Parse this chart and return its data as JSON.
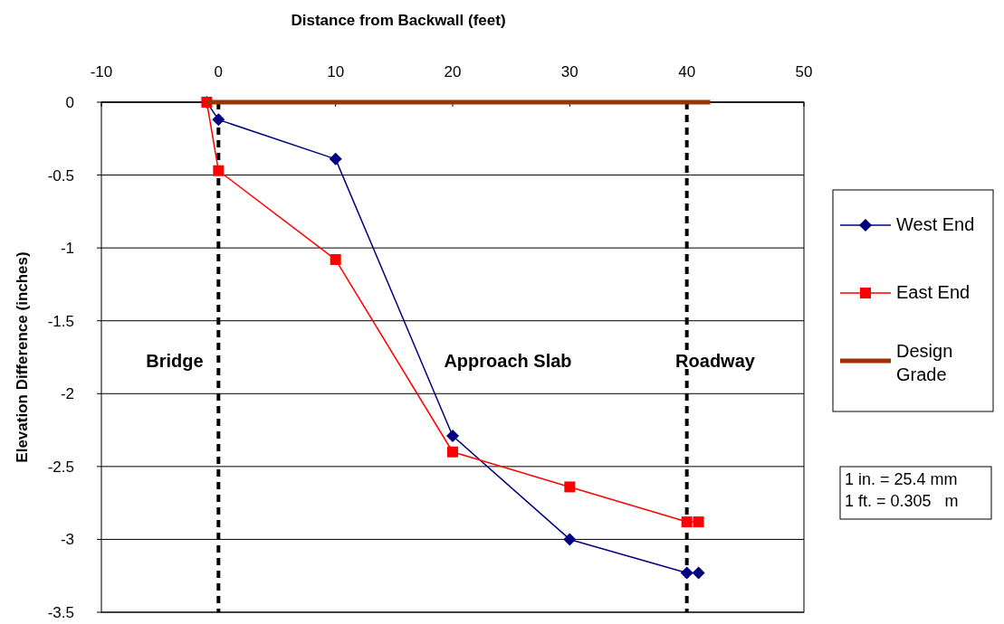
{
  "chart_data": {
    "type": "line",
    "xlabel": "Distance from Backwall (feet)",
    "ylabel": "Elevation Difference (inches)",
    "xlim": [
      -10,
      50
    ],
    "xticks": [
      -10,
      0,
      10,
      20,
      30,
      40,
      50
    ],
    "ylim": [
      -3.5,
      0
    ],
    "yticks": [
      0,
      -0.5,
      -1,
      -1.5,
      -2,
      -2.5,
      -3,
      -3.5
    ],
    "grid": "y",
    "legend": "right",
    "line_style": "solid",
    "series": [
      {
        "name": "West End",
        "color": "#000080",
        "marker": "diamond",
        "x": [
          -1,
          0,
          10,
          20,
          30,
          40,
          41
        ],
        "values": [
          0,
          -0.12,
          -0.39,
          -2.29,
          -3.0,
          -3.23,
          -3.23
        ]
      },
      {
        "name": "East End",
        "color": "#ff0000",
        "marker": "square",
        "x": [
          -1,
          0,
          10,
          20,
          30,
          40,
          41
        ],
        "values": [
          0,
          -0.47,
          -1.08,
          -2.4,
          -2.64,
          -2.88,
          -2.88
        ]
      },
      {
        "name": "Design Grade",
        "color": "#993300",
        "marker": "none",
        "x": [
          -1,
          42
        ],
        "values": [
          0,
          0
        ]
      }
    ],
    "ref_lines": [
      {
        "axis": "x",
        "value": 0,
        "color": "#000000",
        "line_style": "dashed"
      },
      {
        "axis": "x",
        "value": 40,
        "color": "#000000",
        "line_style": "dashed"
      }
    ],
    "annotations": [
      "Bridge",
      "Approach Slab",
      "Roadway",
      "1 in. = 25.4 mm\n1 ft. = 0.305   m"
    ]
  }
}
